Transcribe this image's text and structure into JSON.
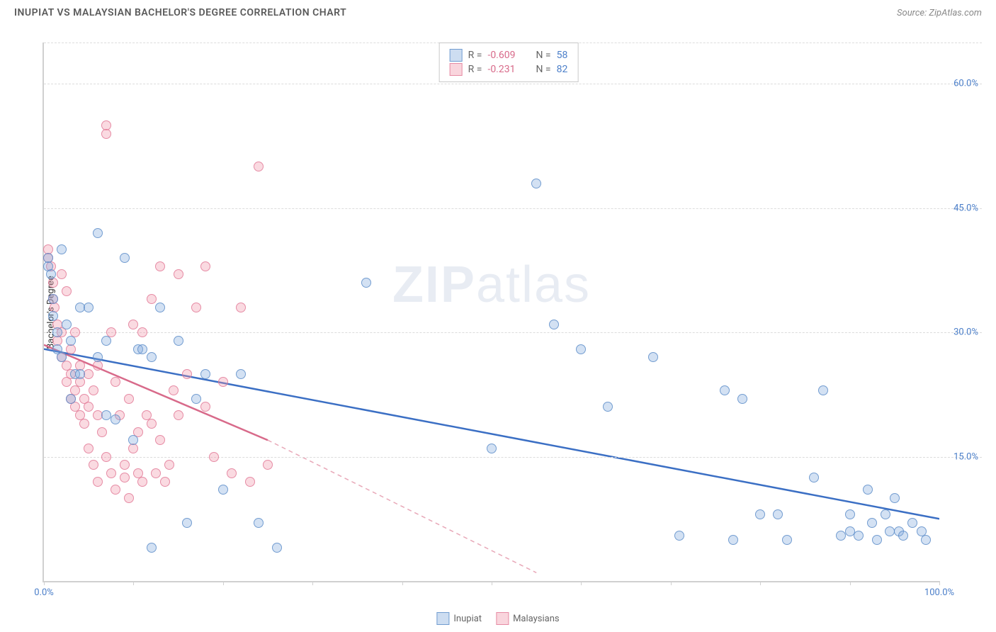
{
  "header": {
    "title": "INUPIAT VS MALAYSIAN BACHELOR'S DEGREE CORRELATION CHART",
    "source": "Source: ZipAtlas.com"
  },
  "watermark": {
    "bold": "ZIP",
    "light": "atlas"
  },
  "chart": {
    "type": "scatter",
    "y_axis_label": "Bachelor's Degree",
    "xlim": [
      0,
      100
    ],
    "ylim": [
      0,
      65
    ],
    "x_tick_positions": [
      0,
      10,
      20,
      30,
      40,
      50,
      60,
      70,
      80,
      90,
      100
    ],
    "x_tick_labels": {
      "0": "0.0%",
      "100": "100.0%"
    },
    "y_grid_values": [
      15,
      30,
      45,
      60
    ],
    "y_grid_labels": [
      "15.0%",
      "30.0%",
      "45.0%",
      "60.0%"
    ],
    "grid_color": "#dcdcdc",
    "axis_color": "#d0d0d0",
    "background_color": "#ffffff",
    "series": {
      "inupiat": {
        "label": "Inupiat",
        "color_fill": "rgba(130,170,220,0.35)",
        "color_stroke": "rgba(90,140,200,0.8)",
        "marker_size": 14,
        "trend": {
          "x1": 0,
          "y1": 28,
          "x2": 100,
          "y2": 7.5,
          "color": "#3b6fc4",
          "width": 2.5,
          "dash": "none"
        },
        "points": [
          [
            0.5,
            39
          ],
          [
            0.5,
            38
          ],
          [
            0.8,
            37
          ],
          [
            1,
            34
          ],
          [
            1,
            32
          ],
          [
            1.5,
            30
          ],
          [
            1.5,
            28
          ],
          [
            2,
            40
          ],
          [
            2,
            27
          ],
          [
            2.5,
            31
          ],
          [
            3,
            29
          ],
          [
            3,
            22
          ],
          [
            3.5,
            25
          ],
          [
            4,
            33
          ],
          [
            4,
            25
          ],
          [
            5,
            33
          ],
          [
            6,
            42
          ],
          [
            6,
            27
          ],
          [
            7,
            20
          ],
          [
            7,
            29
          ],
          [
            8,
            19.5
          ],
          [
            9,
            39
          ],
          [
            10,
            17
          ],
          [
            10.5,
            28
          ],
          [
            11,
            28
          ],
          [
            12,
            27
          ],
          [
            12,
            4
          ],
          [
            13,
            33
          ],
          [
            15,
            29
          ],
          [
            16,
            7
          ],
          [
            17,
            22
          ],
          [
            18,
            25
          ],
          [
            20,
            11
          ],
          [
            22,
            25
          ],
          [
            24,
            7
          ],
          [
            26,
            4
          ],
          [
            36,
            36
          ],
          [
            50,
            16
          ],
          [
            55,
            48
          ],
          [
            57,
            31
          ],
          [
            60,
            28
          ],
          [
            63,
            21
          ],
          [
            68,
            27
          ],
          [
            71,
            5.5
          ],
          [
            76,
            23
          ],
          [
            77,
            5
          ],
          [
            78,
            22
          ],
          [
            80,
            8
          ],
          [
            82,
            8
          ],
          [
            83,
            5
          ],
          [
            86,
            12.5
          ],
          [
            87,
            23
          ],
          [
            89,
            5.5
          ],
          [
            90,
            8
          ],
          [
            90,
            6
          ],
          [
            91,
            5.5
          ],
          [
            92,
            11
          ],
          [
            92.5,
            7
          ],
          [
            93,
            5
          ],
          [
            94,
            8
          ],
          [
            94.5,
            6
          ],
          [
            95,
            10
          ],
          [
            95.5,
            6
          ],
          [
            96,
            5.5
          ],
          [
            97,
            7
          ],
          [
            98,
            6
          ],
          [
            98.5,
            5
          ]
        ]
      },
      "malaysians": {
        "label": "Malaysians",
        "color_fill": "rgba(240,150,170,0.35)",
        "color_stroke": "rgba(225,120,150,0.8)",
        "marker_size": 14,
        "trend_solid": {
          "x1": 0,
          "y1": 28.5,
          "x2": 25,
          "y2": 17,
          "color": "#d86a8a",
          "width": 2.5
        },
        "trend_dashed": {
          "x1": 25,
          "y1": 17,
          "x2": 55,
          "y2": 1,
          "color": "#e8a8b8",
          "width": 1.5
        },
        "points": [
          [
            0.5,
            40
          ],
          [
            0.5,
            39
          ],
          [
            0.8,
            38
          ],
          [
            1,
            36
          ],
          [
            1,
            34
          ],
          [
            1.2,
            33
          ],
          [
            1.5,
            31
          ],
          [
            1.5,
            29
          ],
          [
            2,
            37
          ],
          [
            2,
            30
          ],
          [
            2,
            27
          ],
          [
            2.5,
            35
          ],
          [
            2.5,
            26
          ],
          [
            2.5,
            24
          ],
          [
            3,
            28
          ],
          [
            3,
            25
          ],
          [
            3,
            22
          ],
          [
            3.5,
            30
          ],
          [
            3.5,
            23
          ],
          [
            3.5,
            21
          ],
          [
            4,
            26
          ],
          [
            4,
            24
          ],
          [
            4,
            20
          ],
          [
            4.5,
            22
          ],
          [
            4.5,
            19
          ],
          [
            5,
            25
          ],
          [
            5,
            21
          ],
          [
            5,
            16
          ],
          [
            5.5,
            23
          ],
          [
            5.5,
            14
          ],
          [
            6,
            26
          ],
          [
            6,
            20
          ],
          [
            6,
            12
          ],
          [
            6.5,
            18
          ],
          [
            7,
            55
          ],
          [
            7,
            54
          ],
          [
            7,
            15
          ],
          [
            7.5,
            30
          ],
          [
            7.5,
            13
          ],
          [
            8,
            24
          ],
          [
            8,
            11
          ],
          [
            8.5,
            20
          ],
          [
            9,
            14
          ],
          [
            9,
            12.5
          ],
          [
            9.5,
            22
          ],
          [
            9.5,
            10
          ],
          [
            10,
            31
          ],
          [
            10,
            16
          ],
          [
            10.5,
            13
          ],
          [
            10.5,
            18
          ],
          [
            11,
            12
          ],
          [
            11,
            30
          ],
          [
            11.5,
            20
          ],
          [
            12,
            34
          ],
          [
            12,
            19
          ],
          [
            12.5,
            13
          ],
          [
            13,
            38
          ],
          [
            13,
            17
          ],
          [
            13.5,
            12
          ],
          [
            14,
            14
          ],
          [
            14.5,
            23
          ],
          [
            15,
            37
          ],
          [
            15,
            20
          ],
          [
            16,
            25
          ],
          [
            17,
            33
          ],
          [
            18,
            38
          ],
          [
            18,
            21
          ],
          [
            19,
            15
          ],
          [
            20,
            24
          ],
          [
            21,
            13
          ],
          [
            22,
            33
          ],
          [
            23,
            12
          ],
          [
            24,
            50
          ],
          [
            25,
            14
          ]
        ]
      }
    },
    "stats": [
      {
        "swatch": "blue",
        "r": "-0.609",
        "n": "58"
      },
      {
        "swatch": "pink",
        "r": "-0.231",
        "n": "82"
      }
    ]
  },
  "legend": {
    "items": [
      {
        "swatch": "blue",
        "label": "Inupiat"
      },
      {
        "swatch": "pink",
        "label": "Malaysians"
      }
    ]
  }
}
